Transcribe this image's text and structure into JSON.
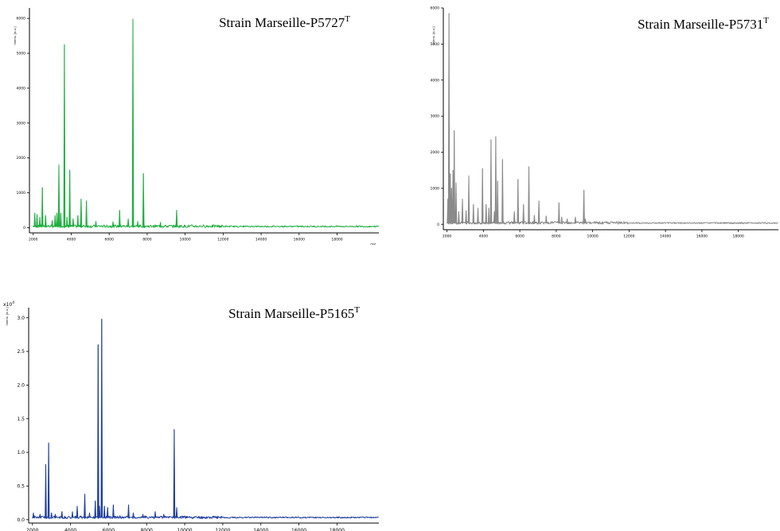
{
  "chart_data": [
    {
      "id": "p5727",
      "type": "line",
      "title": "Strain Marseille-P5727",
      "title_sup": "T",
      "ylabel": "Intens. [a.u.]",
      "xlabel": "m/z",
      "y_multiplier": "",
      "xlim": [
        1800,
        20200
      ],
      "ylim": [
        -150,
        6300
      ],
      "x_ticks": [
        2000,
        4000,
        6000,
        8000,
        10000,
        12000,
        14000,
        16000,
        18000
      ],
      "y_ticks": [
        0,
        1000,
        2000,
        3000,
        4000,
        5000,
        6000
      ],
      "y_tick_labels": [
        "0",
        "1000",
        "2000",
        "3000",
        "4000",
        "5000",
        "6000"
      ],
      "color": "#1fae3f",
      "baseline": 30,
      "peaks": [
        {
          "x": 2080,
          "y": 420
        },
        {
          "x": 2200,
          "y": 380
        },
        {
          "x": 2350,
          "y": 300
        },
        {
          "x": 2480,
          "y": 1150
        },
        {
          "x": 2650,
          "y": 350
        },
        {
          "x": 3000,
          "y": 200
        },
        {
          "x": 3150,
          "y": 350
        },
        {
          "x": 3250,
          "y": 420
        },
        {
          "x": 3350,
          "y": 1800
        },
        {
          "x": 3450,
          "y": 420
        },
        {
          "x": 3640,
          "y": 5250
        },
        {
          "x": 3780,
          "y": 300
        },
        {
          "x": 3920,
          "y": 1650
        },
        {
          "x": 4100,
          "y": 250
        },
        {
          "x": 4350,
          "y": 350
        },
        {
          "x": 4520,
          "y": 820
        },
        {
          "x": 4800,
          "y": 770
        },
        {
          "x": 5300,
          "y": 180
        },
        {
          "x": 6200,
          "y": 170
        },
        {
          "x": 6550,
          "y": 500
        },
        {
          "x": 7000,
          "y": 250
        },
        {
          "x": 7250,
          "y": 5980
        },
        {
          "x": 7500,
          "y": 180
        },
        {
          "x": 7800,
          "y": 1550
        },
        {
          "x": 8700,
          "y": 150
        },
        {
          "x": 9550,
          "y": 500
        }
      ]
    },
    {
      "id": "p5731",
      "type": "line",
      "title": "Strain Marseille-P5731",
      "title_sup": "T",
      "ylabel": "Intens. [a.u.]",
      "xlabel": "",
      "y_multiplier": "",
      "xlim": [
        1800,
        20200
      ],
      "ylim": [
        -150,
        6000
      ],
      "x_ticks": [
        2000,
        4000,
        6000,
        8000,
        10000,
        12000,
        14000,
        16000,
        18000
      ],
      "y_ticks": [
        0,
        1000,
        2000,
        3000,
        4000,
        5000,
        6000
      ],
      "y_tick_labels": [
        "0",
        "1000",
        "2000",
        "3000",
        "4000",
        "5000",
        "6000"
      ],
      "color": "#8a8a8a",
      "baseline": 30,
      "peaks": [
        {
          "x": 2050,
          "y": 700
        },
        {
          "x": 2110,
          "y": 5850
        },
        {
          "x": 2180,
          "y": 1400
        },
        {
          "x": 2250,
          "y": 1000
        },
        {
          "x": 2330,
          "y": 1500
        },
        {
          "x": 2400,
          "y": 2600
        },
        {
          "x": 2500,
          "y": 1150
        },
        {
          "x": 2650,
          "y": 350
        },
        {
          "x": 2850,
          "y": 700
        },
        {
          "x": 3050,
          "y": 380
        },
        {
          "x": 3200,
          "y": 1350
        },
        {
          "x": 3450,
          "y": 550
        },
        {
          "x": 3700,
          "y": 450
        },
        {
          "x": 3950,
          "y": 1550
        },
        {
          "x": 4150,
          "y": 550
        },
        {
          "x": 4300,
          "y": 450
        },
        {
          "x": 4420,
          "y": 2350
        },
        {
          "x": 4600,
          "y": 350
        },
        {
          "x": 4680,
          "y": 2430
        },
        {
          "x": 4780,
          "y": 1200
        },
        {
          "x": 5050,
          "y": 1800
        },
        {
          "x": 5700,
          "y": 350
        },
        {
          "x": 5900,
          "y": 1250
        },
        {
          "x": 6200,
          "y": 550
        },
        {
          "x": 6500,
          "y": 1600
        },
        {
          "x": 6800,
          "y": 250
        },
        {
          "x": 7050,
          "y": 650
        },
        {
          "x": 7450,
          "y": 230
        },
        {
          "x": 8150,
          "y": 600
        },
        {
          "x": 8300,
          "y": 200
        },
        {
          "x": 8600,
          "y": 150
        },
        {
          "x": 9050,
          "y": 200
        },
        {
          "x": 9520,
          "y": 950
        },
        {
          "x": 9600,
          "y": 150
        }
      ]
    },
    {
      "id": "p5165",
      "type": "line",
      "title": "Strain Marseille-P5165",
      "title_sup": "T",
      "ylabel": "Intens. [a.u.]",
      "xlabel": "",
      "y_multiplier": "x10",
      "y_multiplier_sup": "4",
      "xlim": [
        1800,
        20200
      ],
      "ylim": [
        -0.05,
        3.15
      ],
      "x_ticks": [
        2000,
        4000,
        6000,
        8000,
        10000,
        12000,
        14000,
        16000,
        18000
      ],
      "y_ticks": [
        0.0,
        0.5,
        1.0,
        1.5,
        2.0,
        2.5,
        3.0
      ],
      "y_tick_labels": [
        "0.0",
        "0.5",
        "1.0",
        "1.5",
        "2.0",
        "2.5",
        "3.0"
      ],
      "color": "#1f3f9e",
      "baseline": 0.03,
      "peaks": [
        {
          "x": 2050,
          "y": 0.1
        },
        {
          "x": 2400,
          "y": 0.08
        },
        {
          "x": 2700,
          "y": 0.82
        },
        {
          "x": 2850,
          "y": 1.14
        },
        {
          "x": 3000,
          "y": 0.1
        },
        {
          "x": 3200,
          "y": 0.08
        },
        {
          "x": 3550,
          "y": 0.12
        },
        {
          "x": 4100,
          "y": 0.12
        },
        {
          "x": 4350,
          "y": 0.2
        },
        {
          "x": 4750,
          "y": 0.38
        },
        {
          "x": 5000,
          "y": 0.1
        },
        {
          "x": 5300,
          "y": 0.28
        },
        {
          "x": 5450,
          "y": 2.6
        },
        {
          "x": 5520,
          "y": 0.2
        },
        {
          "x": 5640,
          "y": 2.98
        },
        {
          "x": 5780,
          "y": 0.2
        },
        {
          "x": 5950,
          "y": 0.18
        },
        {
          "x": 6250,
          "y": 0.22
        },
        {
          "x": 6600,
          "y": 0.06
        },
        {
          "x": 7050,
          "y": 0.22
        },
        {
          "x": 7300,
          "y": 0.1
        },
        {
          "x": 7800,
          "y": 0.08
        },
        {
          "x": 8450,
          "y": 0.12
        },
        {
          "x": 8900,
          "y": 0.08
        },
        {
          "x": 9450,
          "y": 1.34
        },
        {
          "x": 9580,
          "y": 0.18
        },
        {
          "x": 10100,
          "y": 0.05
        },
        {
          "x": 11000,
          "y": 0.04
        },
        {
          "x": 15200,
          "y": 0.03
        },
        {
          "x": 19000,
          "y": 0.025
        }
      ]
    }
  ]
}
